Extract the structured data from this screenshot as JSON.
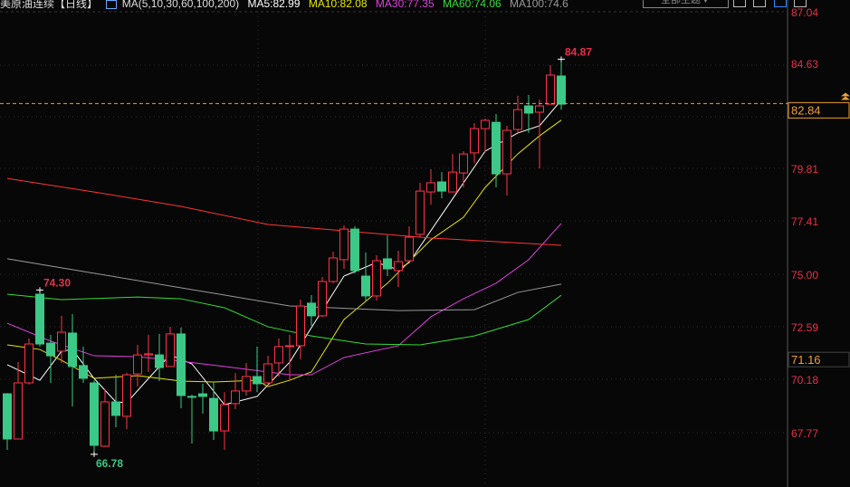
{
  "header": {
    "title": "美原油连续【日线】",
    "ma_params": "MA(5,10,30,60,100,200)",
    "ma_values": [
      {
        "label": "MA5:82.99",
        "color": "#ffffff"
      },
      {
        "label": "MA10:82.08",
        "color": "#e6e600"
      },
      {
        "label": "MA30:77.35",
        "color": "#e040e0"
      },
      {
        "label": "MA60:74.06",
        "color": "#33dd33"
      },
      {
        "label": "MA100:74.6",
        "color": "#999999"
      }
    ],
    "theme_button": "全部主题▼",
    "toolbar_icons": [
      "layout-grid-icon",
      "layout-split-icon",
      "layout-active-icon",
      "layout-corner-icon"
    ]
  },
  "chart_data": {
    "type": "candlestick",
    "ylim": [
      66.0,
      87.04
    ],
    "y_ticks": [
      "87.04",
      "84.63",
      "79.81",
      "77.41",
      "75.00",
      "72.59",
      "70.18",
      "67.77"
    ],
    "current_price": {
      "label": "82.84",
      "value": 82.84,
      "color": "#f0a030"
    },
    "marker_price": {
      "label": "71.16",
      "value": 71.16
    },
    "annotations": [
      {
        "label": "84.87",
        "index": 51,
        "value": 84.87,
        "color": "#e8304a"
      },
      {
        "label": "74.30",
        "index": 3,
        "value": 74.3,
        "color": "#e8304a"
      },
      {
        "label": "66.78",
        "index": 8,
        "value": 66.78,
        "color": "#3cc887"
      }
    ],
    "colors": {
      "up": "#ff3348",
      "down": "#3cc887",
      "axis": "#e8304a"
    },
    "ohlc": [
      [
        69.55,
        69.59,
        66.98,
        67.48
      ],
      [
        67.48,
        71.0,
        67.48,
        70.05
      ],
      [
        70.05,
        72.08,
        69.97,
        71.83
      ],
      [
        74.11,
        74.3,
        71.71,
        71.83
      ],
      [
        71.87,
        72.25,
        70.05,
        71.29
      ],
      [
        71.5,
        73.12,
        70.96,
        72.37
      ],
      [
        72.33,
        73.2,
        68.97,
        70.8
      ],
      [
        70.84,
        71.71,
        70.05,
        70.26
      ],
      [
        70.05,
        70.17,
        66.78,
        67.19
      ],
      [
        67.15,
        69.76,
        67.11,
        69.18
      ],
      [
        69.18,
        70.42,
        68.02,
        68.56
      ],
      [
        68.52,
        70.5,
        67.94,
        70.42
      ],
      [
        70.46,
        71.79,
        69.88,
        71.33
      ],
      [
        71.33,
        72.25,
        70.55,
        71.38
      ],
      [
        71.33,
        72.29,
        70.13,
        70.75
      ],
      [
        70.8,
        72.62,
        70.8,
        72.29
      ],
      [
        72.29,
        72.58,
        68.89,
        69.47
      ],
      [
        69.43,
        69.51,
        67.27,
        69.39
      ],
      [
        69.55,
        70.01,
        68.64,
        69.43
      ],
      [
        69.34,
        70.09,
        67.44,
        67.85
      ],
      [
        67.85,
        69.63,
        66.98,
        69.05
      ],
      [
        69.1,
        70.5,
        68.85,
        69.68
      ],
      [
        69.68,
        70.96,
        69.47,
        70.34
      ],
      [
        70.34,
        71.71,
        69.63,
        70.01
      ],
      [
        70.05,
        71.29,
        69.88,
        70.92
      ],
      [
        70.96,
        72.08,
        70.34,
        71.71
      ],
      [
        71.71,
        72.25,
        70.17,
        71.75
      ],
      [
        71.75,
        73.86,
        71.13,
        73.57
      ],
      [
        73.7,
        74.07,
        72.66,
        73.12
      ],
      [
        73.12,
        74.9,
        73.07,
        74.69
      ],
      [
        74.69,
        76.06,
        74.61,
        75.77
      ],
      [
        75.69,
        77.26,
        75.27,
        77.09
      ],
      [
        77.09,
        77.22,
        75.06,
        75.19
      ],
      [
        74.94,
        76.02,
        73.78,
        74.03
      ],
      [
        74.03,
        75.89,
        73.82,
        75.64
      ],
      [
        75.73,
        76.8,
        74.94,
        75.27
      ],
      [
        75.19,
        76.1,
        74.44,
        75.6
      ],
      [
        75.64,
        77.22,
        75.56,
        76.72
      ],
      [
        76.85,
        79.21,
        76.72,
        78.83
      ],
      [
        78.79,
        79.83,
        78.21,
        79.21
      ],
      [
        79.25,
        79.7,
        78.5,
        78.83
      ],
      [
        78.79,
        80.53,
        78.79,
        79.7
      ],
      [
        79.66,
        80.66,
        79.0,
        80.53
      ],
      [
        80.58,
        81.94,
        80.12,
        81.69
      ],
      [
        81.69,
        82.15,
        80.62,
        82.07
      ],
      [
        81.98,
        82.36,
        79.0,
        79.62
      ],
      [
        79.62,
        81.82,
        78.63,
        81.61
      ],
      [
        81.65,
        83.19,
        81.49,
        82.56
      ],
      [
        82.73,
        83.23,
        81.49,
        82.4
      ],
      [
        82.44,
        83.02,
        79.87,
        82.73
      ],
      [
        82.81,
        84.6,
        82.81,
        84.14
      ],
      [
        84.1,
        84.87,
        82.56,
        82.81
      ]
    ],
    "ma_lines": [
      {
        "name": "MA5",
        "color": "#ffffff",
        "points": [
          [
            0,
            70.88
          ],
          [
            3,
            70.17
          ],
          [
            5,
            71.5
          ],
          [
            6,
            71.58
          ],
          [
            8,
            70.25
          ],
          [
            10,
            69.18
          ],
          [
            11,
            69.14
          ],
          [
            13,
            70.25
          ],
          [
            15,
            71.33
          ],
          [
            17,
            70.92
          ],
          [
            20,
            69.05
          ],
          [
            23,
            69.43
          ],
          [
            26,
            71.0
          ],
          [
            31,
            74.94
          ],
          [
            34,
            75.56
          ],
          [
            36,
            75.23
          ],
          [
            37,
            75.56
          ],
          [
            40,
            77.75
          ],
          [
            44,
            80.66
          ],
          [
            47,
            81.49
          ],
          [
            49,
            81.82
          ],
          [
            51,
            82.99
          ]
        ]
      },
      {
        "name": "MA10",
        "color": "#e6e600",
        "points": [
          [
            0,
            71.79
          ],
          [
            3,
            71.58
          ],
          [
            5,
            71.08
          ],
          [
            8,
            70.26
          ],
          [
            12,
            70.38
          ],
          [
            16,
            70.13
          ],
          [
            19,
            70.09
          ],
          [
            23,
            70.17
          ],
          [
            24,
            69.88
          ],
          [
            26,
            70.17
          ],
          [
            28,
            70.55
          ],
          [
            31,
            72.95
          ],
          [
            35,
            74.61
          ],
          [
            39,
            76.6
          ],
          [
            42,
            77.63
          ],
          [
            44,
            79.0
          ],
          [
            47,
            80.53
          ],
          [
            49,
            81.36
          ],
          [
            51,
            82.08
          ]
        ]
      },
      {
        "name": "MA30",
        "color": "#e040e0",
        "points": [
          [
            0,
            72.78
          ],
          [
            4,
            71.96
          ],
          [
            8,
            71.29
          ],
          [
            12,
            71.25
          ],
          [
            16,
            71.04
          ],
          [
            20,
            70.8
          ],
          [
            26,
            70.42
          ],
          [
            28,
            70.42
          ],
          [
            31,
            71.21
          ],
          [
            36,
            71.75
          ],
          [
            39,
            73.07
          ],
          [
            42,
            73.9
          ],
          [
            45,
            74.61
          ],
          [
            48,
            75.69
          ],
          [
            51,
            77.35
          ]
        ]
      },
      {
        "name": "MA60",
        "color": "#33dd33",
        "points": [
          [
            0,
            74.11
          ],
          [
            5,
            73.86
          ],
          [
            12,
            73.98
          ],
          [
            16,
            73.9
          ],
          [
            20,
            73.49
          ],
          [
            24,
            72.62
          ],
          [
            28,
            72.2
          ],
          [
            33,
            71.83
          ],
          [
            38,
            71.79
          ],
          [
            43,
            72.2
          ],
          [
            48,
            72.95
          ],
          [
            51,
            74.06
          ]
        ]
      },
      {
        "name": "MA100",
        "color": "#999999",
        "points": [
          [
            0,
            75.73
          ],
          [
            7,
            75.15
          ],
          [
            26,
            73.57
          ],
          [
            36,
            73.36
          ],
          [
            43,
            73.4
          ],
          [
            47,
            74.19
          ],
          [
            51,
            74.57
          ]
        ]
      },
      {
        "name": "MA200",
        "color": "#ff3333",
        "points": [
          [
            0,
            79.41
          ],
          [
            8,
            78.79
          ],
          [
            16,
            78.13
          ],
          [
            24,
            77.3
          ],
          [
            39,
            76.68
          ],
          [
            51,
            76.35
          ]
        ]
      }
    ]
  }
}
